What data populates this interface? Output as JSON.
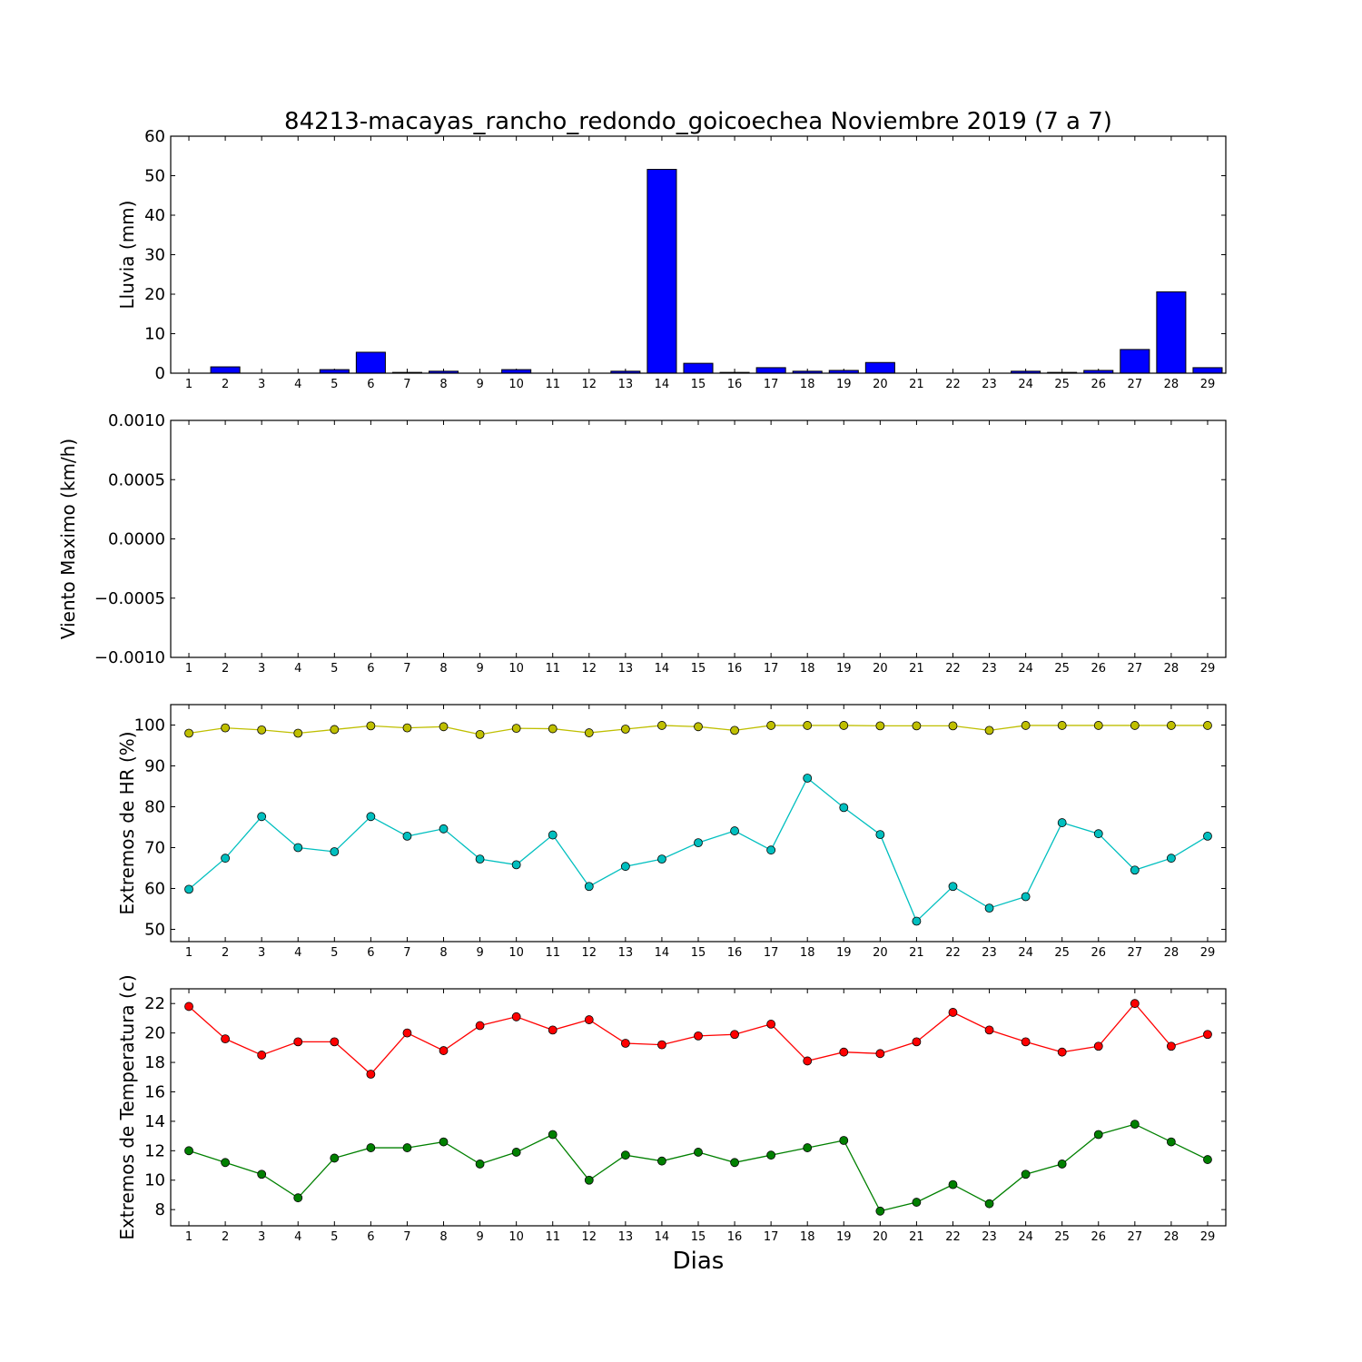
{
  "title": "84213-macayas_rancho_redondo_goicoechea Noviembre 2019  (7 a 7)",
  "xlabel": "Dias",
  "days": [
    1,
    2,
    3,
    4,
    5,
    6,
    7,
    8,
    9,
    10,
    11,
    12,
    13,
    14,
    15,
    16,
    17,
    18,
    19,
    20,
    21,
    22,
    23,
    24,
    25,
    26,
    27,
    28,
    29
  ],
  "colors": {
    "rain": "#0000ff",
    "hr_max": "#bfbf00",
    "hr_min": "#00bfbf",
    "t_max": "#ff0000",
    "t_min": "#008000"
  },
  "chart_data": [
    {
      "type": "bar",
      "ylabel": "Lluvia (mm)",
      "ylim": [
        0,
        60
      ],
      "yticks": [
        0,
        10,
        20,
        30,
        40,
        50,
        60
      ],
      "ytick_labels": [
        "0",
        "10",
        "20",
        "30",
        "40",
        "50",
        "60"
      ],
      "categories": [
        1,
        2,
        3,
        4,
        5,
        6,
        7,
        8,
        9,
        10,
        11,
        12,
        13,
        14,
        15,
        16,
        17,
        18,
        19,
        20,
        21,
        22,
        23,
        24,
        25,
        26,
        27,
        28,
        29
      ],
      "values": [
        0,
        1.6,
        0,
        0,
        0.9,
        5.3,
        0.2,
        0.5,
        0,
        0.9,
        0,
        0,
        0.5,
        51.6,
        2.5,
        0.2,
        1.4,
        0.5,
        0.7,
        2.7,
        0,
        0,
        0,
        0.5,
        0.2,
        0.7,
        6.0,
        20.6,
        1.4
      ]
    },
    {
      "type": "line",
      "ylabel": "Viento Maximo (km/h)",
      "ylim": [
        -0.001,
        0.001
      ],
      "yticks": [
        -0.001,
        -0.0005,
        0,
        0.0005,
        0.001
      ],
      "ytick_labels": [
        "−0.0010",
        "−0.0005",
        "0.0000",
        "0.0005",
        "0.0010"
      ],
      "x": [],
      "series": []
    },
    {
      "type": "line",
      "ylabel": "Extremos de HR (%)",
      "ylim": [
        47,
        105
      ],
      "yticks": [
        50,
        60,
        70,
        80,
        90,
        100
      ],
      "ytick_labels": [
        "50",
        "60",
        "70",
        "80",
        "90",
        "100"
      ],
      "x": [
        1,
        2,
        3,
        4,
        5,
        6,
        7,
        8,
        9,
        10,
        11,
        12,
        13,
        14,
        15,
        16,
        17,
        18,
        19,
        20,
        21,
        22,
        23,
        24,
        25,
        26,
        27,
        28,
        29
      ],
      "series": [
        {
          "color": "#bfbf00",
          "values": [
            98,
            99.3,
            98.8,
            98,
            98.9,
            99.8,
            99.3,
            99.6,
            97.7,
            99.2,
            99.1,
            98.1,
            99,
            99.9,
            99.6,
            98.7,
            99.9,
            99.9,
            99.9,
            99.8,
            99.8,
            99.8,
            98.7,
            99.9,
            99.9,
            99.9,
            99.9,
            99.9,
            99.9
          ]
        },
        {
          "color": "#00bfbf",
          "values": [
            59.8,
            67.4,
            77.6,
            70,
            69,
            77.6,
            72.8,
            74.6,
            67.2,
            65.8,
            73.1,
            60.5,
            65.4,
            67.2,
            71.2,
            74.1,
            69.4,
            87,
            79.8,
            73.2,
            52,
            60.5,
            55.2,
            58,
            76.1,
            73.4,
            64.5,
            67.4,
            72.8
          ]
        }
      ]
    },
    {
      "type": "line",
      "ylabel": "Extremos de Temperatura (c)",
      "ylim": [
        6.9,
        23.0
      ],
      "yticks": [
        8,
        10,
        12,
        14,
        16,
        18,
        20,
        22
      ],
      "ytick_labels": [
        "8",
        "10",
        "12",
        "14",
        "16",
        "18",
        "20",
        "22"
      ],
      "x": [
        1,
        2,
        3,
        4,
        5,
        6,
        7,
        8,
        9,
        10,
        11,
        12,
        13,
        14,
        15,
        16,
        17,
        18,
        19,
        20,
        21,
        22,
        23,
        24,
        25,
        26,
        27,
        28,
        29
      ],
      "series": [
        {
          "color": "#ff0000",
          "values": [
            21.8,
            19.6,
            18.5,
            19.4,
            19.4,
            17.2,
            20.0,
            18.8,
            20.5,
            21.1,
            20.2,
            20.9,
            19.3,
            19.2,
            19.8,
            19.9,
            20.6,
            18.1,
            18.7,
            18.6,
            19.4,
            21.4,
            20.2,
            19.4,
            18.7,
            19.1,
            22.0,
            19.1,
            19.9
          ]
        },
        {
          "color": "#008000",
          "values": [
            12.0,
            11.2,
            10.4,
            8.8,
            11.5,
            12.2,
            12.2,
            12.6,
            11.1,
            11.9,
            13.1,
            10.0,
            11.7,
            11.3,
            11.9,
            11.2,
            11.7,
            12.2,
            12.7,
            7.9,
            8.5,
            9.7,
            8.4,
            10.4,
            11.1,
            13.1,
            13.8,
            12.6,
            11.4
          ]
        }
      ]
    }
  ]
}
